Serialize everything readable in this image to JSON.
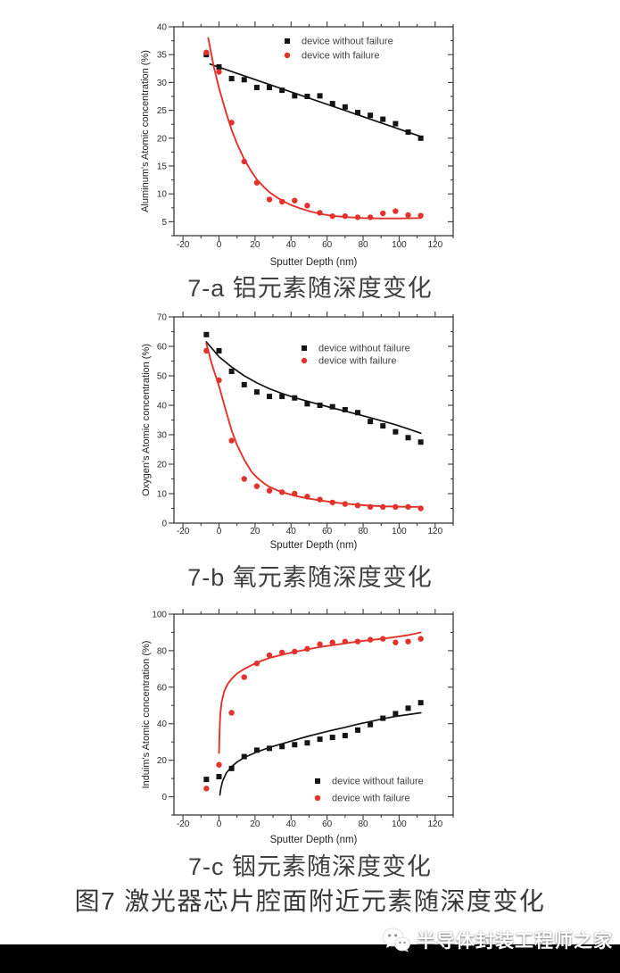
{
  "figure_caption": "图7  激光器芯片腔面附近元素随深度变化",
  "watermark": {
    "icon": "wechat-icon",
    "text": "半导体封装工程师之家"
  },
  "colors": {
    "series_without_failure": "#141414",
    "series_with_failure": "#e2322b",
    "axis": "#3a3a3a",
    "bottom_bar": "#000000"
  },
  "chart_data": [
    {
      "id": "7-a",
      "type": "scatter",
      "caption": "7-a 铝元素随深度变化",
      "xlabel": "Sputter Depth (nm)",
      "ylabel": "Aluminum's Atomic concentration (%)",
      "xlim": [
        -25,
        130
      ],
      "ylim": [
        2.5,
        40
      ],
      "xticks": [
        -20,
        0,
        20,
        40,
        60,
        80,
        100,
        120
      ],
      "yticks": [
        5,
        10,
        15,
        20,
        25,
        30,
        35,
        40
      ],
      "x_minor_step": 10,
      "y_minor_step": 2.5,
      "legend_position": "top-right",
      "x": [
        -7,
        0,
        7,
        14,
        21,
        28,
        35,
        42,
        49,
        56,
        63,
        70,
        77,
        84,
        91,
        98,
        105,
        112
      ],
      "series": [
        {
          "name": "device without failure",
          "marker": "square",
          "color": "#141414",
          "values": [
            35.0,
            32.8,
            30.7,
            30.5,
            29.1,
            29.1,
            28.6,
            27.6,
            27.5,
            27.6,
            26.2,
            25.6,
            24.6,
            24.1,
            23.4,
            22.6,
            21.1,
            20.0
          ],
          "fit": [
            [
              -5,
              33.3
            ],
            [
              112,
              20.3
            ]
          ]
        },
        {
          "name": "device with failure",
          "marker": "circle",
          "color": "#e2322b",
          "values": [
            35.4,
            31.9,
            22.8,
            15.8,
            12.0,
            9.0,
            8.6,
            8.8,
            7.9,
            6.6,
            6.0,
            6.0,
            5.8,
            5.8,
            6.5,
            6.9,
            6.2,
            6.1
          ],
          "fit": [
            [
              -6,
              38
            ],
            [
              -3,
              33
            ],
            [
              0,
              29
            ],
            [
              4,
              24.5
            ],
            [
              7,
              21.5
            ],
            [
              10,
              19
            ],
            [
              14,
              16.2
            ],
            [
              18,
              14
            ],
            [
              21,
              12.6
            ],
            [
              25,
              11.2
            ],
            [
              28,
              10.3
            ],
            [
              32,
              9.4
            ],
            [
              35,
              8.8
            ],
            [
              40,
              8
            ],
            [
              45,
              7.4
            ],
            [
              50,
              6.9
            ],
            [
              55,
              6.5
            ],
            [
              60,
              6.2
            ],
            [
              65,
              6.0
            ],
            [
              70,
              5.85
            ],
            [
              75,
              5.75
            ],
            [
              80,
              5.65
            ],
            [
              90,
              5.6
            ],
            [
              100,
              5.6
            ],
            [
              112,
              5.65
            ]
          ]
        }
      ]
    },
    {
      "id": "7-b",
      "type": "scatter",
      "caption": "7-b 氧元素随深度变化",
      "xlabel": "Sputter Depth (nm)",
      "ylabel": "Oxygen's Atomic concentration (%)",
      "xlim": [
        -25,
        130
      ],
      "ylim": [
        0,
        70
      ],
      "xticks": [
        -20,
        0,
        20,
        40,
        60,
        80,
        100,
        120
      ],
      "yticks": [
        0,
        10,
        20,
        30,
        40,
        50,
        60,
        70
      ],
      "x_minor_step": 10,
      "y_minor_step": 5,
      "legend_position": "top-right",
      "x": [
        -7,
        0,
        7,
        14,
        21,
        28,
        35,
        42,
        49,
        56,
        63,
        70,
        77,
        84,
        91,
        98,
        105,
        112
      ],
      "series": [
        {
          "name": "device without failure",
          "marker": "square",
          "color": "#141414",
          "values": [
            64.0,
            58.5,
            51.5,
            47.0,
            44.5,
            43.0,
            43.0,
            42.5,
            40.5,
            40.0,
            39.5,
            38.5,
            37.5,
            34.5,
            33.0,
            31.0,
            29.0,
            27.5
          ],
          "fit": [
            [
              -7,
              61.5
            ],
            [
              0,
              56.5
            ],
            [
              7,
              53
            ],
            [
              14,
              50
            ],
            [
              21,
              47.6
            ],
            [
              28,
              45.6
            ],
            [
              35,
              44
            ],
            [
              42,
              42.6
            ],
            [
              49,
              41.4
            ],
            [
              56,
              40.2
            ],
            [
              63,
              39.1
            ],
            [
              70,
              38
            ],
            [
              77,
              36.9
            ],
            [
              84,
              35.8
            ],
            [
              91,
              34.6
            ],
            [
              98,
              33.4
            ],
            [
              105,
              32
            ],
            [
              112,
              30.5
            ]
          ]
        },
        {
          "name": "device with failure",
          "marker": "circle",
          "color": "#e2322b",
          "values": [
            58.5,
            48.5,
            28.0,
            15.0,
            12.5,
            11.0,
            10.5,
            10.0,
            9.0,
            8.0,
            7.0,
            6.5,
            6.0,
            5.5,
            5.5,
            5.5,
            5.5,
            5.0
          ],
          "fit": [
            [
              -7,
              61
            ],
            [
              -4,
              54
            ],
            [
              0,
              46.5
            ],
            [
              3,
              40
            ],
            [
              7,
              31.5
            ],
            [
              10,
              26.5
            ],
            [
              14,
              21.5
            ],
            [
              18,
              17.5
            ],
            [
              21,
              15.5
            ],
            [
              25,
              13.5
            ],
            [
              28,
              12.3
            ],
            [
              32,
              11.2
            ],
            [
              35,
              10.5
            ],
            [
              42,
              9.3
            ],
            [
              49,
              8.4
            ],
            [
              56,
              7.7
            ],
            [
              63,
              7.1
            ],
            [
              70,
              6.6
            ],
            [
              77,
              6.2
            ],
            [
              84,
              5.9
            ],
            [
              91,
              5.7
            ],
            [
              98,
              5.6
            ],
            [
              105,
              5.5
            ],
            [
              112,
              5.5
            ]
          ]
        }
      ]
    },
    {
      "id": "7-c",
      "type": "scatter",
      "caption": "7-c 铟元素随深度变化",
      "xlabel": "Sputter Depth (nm)",
      "ylabel": "Induim's Atomic concentration (%)",
      "xlim": [
        -25,
        130
      ],
      "ylim": [
        -10,
        100
      ],
      "xticks": [
        -20,
        0,
        20,
        40,
        60,
        80,
        100,
        120
      ],
      "yticks": [
        0,
        20,
        40,
        60,
        80,
        100
      ],
      "x_minor_step": 10,
      "y_minor_step": 10,
      "legend_position": "bottom-right",
      "x": [
        -7,
        0,
        7,
        14,
        21,
        28,
        35,
        42,
        49,
        56,
        63,
        70,
        77,
        84,
        91,
        98,
        105,
        112
      ],
      "series": [
        {
          "name": "device without failure",
          "marker": "square",
          "color": "#141414",
          "values": [
            9.5,
            11.0,
            15.5,
            22.0,
            25.5,
            26.5,
            27.5,
            28.5,
            29.5,
            31.5,
            32.5,
            33.5,
            36.5,
            39.5,
            43.0,
            45.5,
            48.5,
            51.5
          ],
          "fit": [
            [
              0.5,
              1
            ],
            [
              1,
              4.5
            ],
            [
              2,
              8.5
            ],
            [
              4,
              13
            ],
            [
              7,
              16.5
            ],
            [
              10,
              19
            ],
            [
              14,
              21.5
            ],
            [
              21,
              24.5
            ],
            [
              28,
              27
            ],
            [
              35,
              29
            ],
            [
              42,
              31
            ],
            [
              49,
              33
            ],
            [
              56,
              34.8
            ],
            [
              63,
              36.5
            ],
            [
              70,
              38
            ],
            [
              77,
              39.7
            ],
            [
              84,
              41.2
            ],
            [
              91,
              42.7
            ],
            [
              98,
              44
            ],
            [
              105,
              45
            ],
            [
              112,
              46
            ]
          ]
        },
        {
          "name": "device with failure",
          "marker": "circle",
          "color": "#e2322b",
          "values": [
            4.5,
            17.5,
            46.0,
            65.5,
            73.0,
            77.5,
            79.0,
            79.5,
            81.0,
            83.5,
            84.5,
            85.0,
            85.0,
            86.0,
            86.5,
            84.5,
            85.0,
            86.5
          ],
          "fit": [
            [
              0,
              24
            ],
            [
              0.3,
              35
            ],
            [
              0.7,
              45
            ],
            [
              1.5,
              52
            ],
            [
              3,
              58
            ],
            [
              5,
              62
            ],
            [
              7,
              64.5
            ],
            [
              10,
              67.5
            ],
            [
              14,
              70
            ],
            [
              21,
              73.5
            ],
            [
              28,
              76
            ],
            [
              35,
              77.8
            ],
            [
              42,
              79.3
            ],
            [
              49,
              80.7
            ],
            [
              56,
              82
            ],
            [
              63,
              83
            ],
            [
              70,
              84
            ],
            [
              77,
              85
            ],
            [
              84,
              85.8
            ],
            [
              91,
              86.5
            ],
            [
              98,
              87.5
            ],
            [
              105,
              88.5
            ],
            [
              112,
              90
            ]
          ]
        }
      ]
    }
  ]
}
